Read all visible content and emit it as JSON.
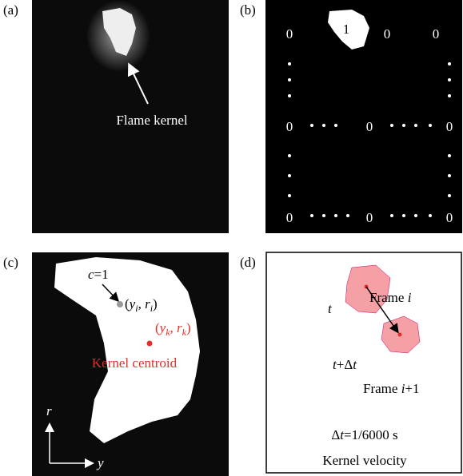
{
  "panels": [
    {
      "label": "(a)",
      "annotation": "Flame kernel"
    },
    {
      "label": "(b)",
      "cells": [
        "0",
        "1",
        "0",
        "0",
        "0",
        "0",
        "0",
        "0",
        "0",
        "0"
      ]
    },
    {
      "label": "(c)",
      "cell_label": [
        "c",
        "=1"
      ],
      "cell_coord": [
        "(",
        "y",
        "i",
        ", ",
        "r",
        "i",
        ")"
      ],
      "centroid_coord": [
        "(",
        "y",
        "k",
        ", ",
        "r",
        "k",
        ")"
      ],
      "centroid_label": "Kernel centroid",
      "axis_r": "r",
      "axis_y": "y"
    },
    {
      "label": "(d)",
      "time_1": "t",
      "frame_1": [
        "Frame ",
        "i"
      ],
      "time_2": [
        "t",
        "+Δ",
        "t"
      ],
      "frame_2": [
        "Frame ",
        "i",
        "+1"
      ],
      "interval": [
        "Δ",
        "t",
        "=1/6000 s"
      ],
      "caption": "Kernel velocity"
    }
  ]
}
